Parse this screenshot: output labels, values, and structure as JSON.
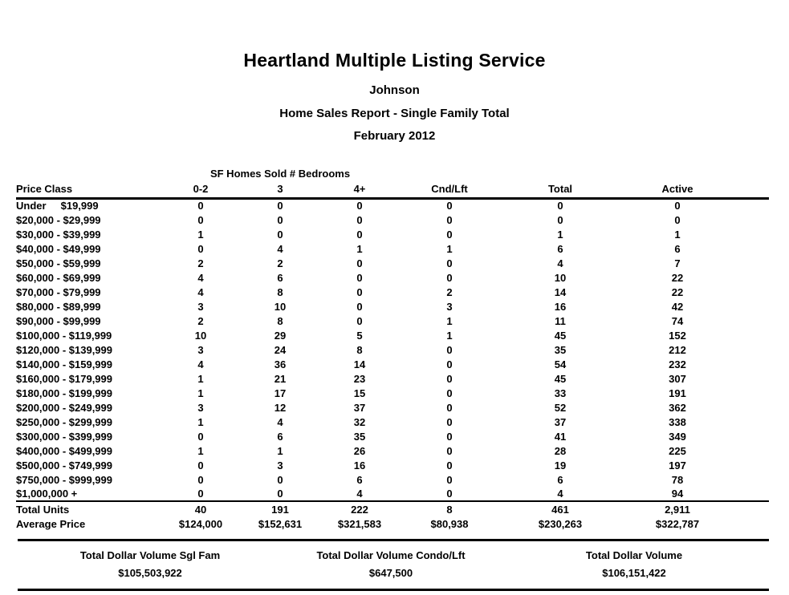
{
  "report": {
    "title": "Heartland Multiple Listing Service",
    "subtitle_name": "Johnson",
    "subtitle_report": "Home Sales Report - Single Family Total",
    "subtitle_period": "February 2012"
  },
  "table": {
    "group_header": "SF Homes Sold # Bedrooms",
    "columns": [
      "Price Class",
      "0-2",
      "3",
      "4+",
      "Cnd/Lft",
      "Total",
      "Active"
    ],
    "rows": [
      {
        "price_class": "Under     $19,999",
        "values": [
          "0",
          "0",
          "0",
          "0",
          "0",
          "0"
        ]
      },
      {
        "price_class": "$20,000 - $29,999",
        "values": [
          "0",
          "0",
          "0",
          "0",
          "0",
          "0"
        ]
      },
      {
        "price_class": "$30,000 - $39,999",
        "values": [
          "1",
          "0",
          "0",
          "0",
          "1",
          "1"
        ]
      },
      {
        "price_class": "$40,000 - $49,999",
        "values": [
          "0",
          "4",
          "1",
          "1",
          "6",
          "6"
        ]
      },
      {
        "price_class": "$50,000 - $59,999",
        "values": [
          "2",
          "2",
          "0",
          "0",
          "4",
          "7"
        ]
      },
      {
        "price_class": "$60,000 - $69,999",
        "values": [
          "4",
          "6",
          "0",
          "0",
          "10",
          "22"
        ]
      },
      {
        "price_class": "$70,000 - $79,999",
        "values": [
          "4",
          "8",
          "0",
          "2",
          "14",
          "22"
        ]
      },
      {
        "price_class": "$80,000 - $89,999",
        "values": [
          "3",
          "10",
          "0",
          "3",
          "16",
          "42"
        ]
      },
      {
        "price_class": "$90,000 - $99,999",
        "values": [
          "2",
          "8",
          "0",
          "1",
          "11",
          "74"
        ]
      },
      {
        "price_class": "$100,000 - $119,999",
        "values": [
          "10",
          "29",
          "5",
          "1",
          "45",
          "152"
        ]
      },
      {
        "price_class": "$120,000 - $139,999",
        "values": [
          "3",
          "24",
          "8",
          "0",
          "35",
          "212"
        ]
      },
      {
        "price_class": "$140,000 - $159,999",
        "values": [
          "4",
          "36",
          "14",
          "0",
          "54",
          "232"
        ]
      },
      {
        "price_class": "$160,000 - $179,999",
        "values": [
          "1",
          "21",
          "23",
          "0",
          "45",
          "307"
        ]
      },
      {
        "price_class": "$180,000 - $199,999",
        "values": [
          "1",
          "17",
          "15",
          "0",
          "33",
          "191"
        ]
      },
      {
        "price_class": "$200,000 - $249,999",
        "values": [
          "3",
          "12",
          "37",
          "0",
          "52",
          "362"
        ]
      },
      {
        "price_class": "$250,000 - $299,999",
        "values": [
          "1",
          "4",
          "32",
          "0",
          "37",
          "338"
        ]
      },
      {
        "price_class": "$300,000 - $399,999",
        "values": [
          "0",
          "6",
          "35",
          "0",
          "41",
          "349"
        ]
      },
      {
        "price_class": "$400,000 - $499,999",
        "values": [
          "1",
          "1",
          "26",
          "0",
          "28",
          "225"
        ]
      },
      {
        "price_class": "$500,000 - $749,999",
        "values": [
          "0",
          "3",
          "16",
          "0",
          "19",
          "197"
        ]
      },
      {
        "price_class": "$750,000 - $999,999",
        "values": [
          "0",
          "0",
          "6",
          "0",
          "6",
          "78"
        ]
      },
      {
        "price_class": "$1,000,000 +",
        "values": [
          "0",
          "0",
          "4",
          "0",
          "4",
          "94"
        ]
      }
    ],
    "totals": [
      {
        "label": "Total Units",
        "values": [
          "40",
          "191",
          "222",
          "8",
          "461",
          "2,911"
        ]
      },
      {
        "label": "Average Price",
        "values": [
          "$124,000",
          "$152,631",
          "$321,583",
          "$80,938",
          "$230,263",
          "$322,787"
        ]
      }
    ]
  },
  "footer": {
    "columns": [
      {
        "label": "Total Dollar Volume Sgl Fam",
        "value": "$105,503,922"
      },
      {
        "label": "Total Dollar Volume Condo/Lft",
        "value": "$647,500"
      },
      {
        "label": "Total Dollar Volume",
        "value": "$106,151,422"
      }
    ]
  }
}
